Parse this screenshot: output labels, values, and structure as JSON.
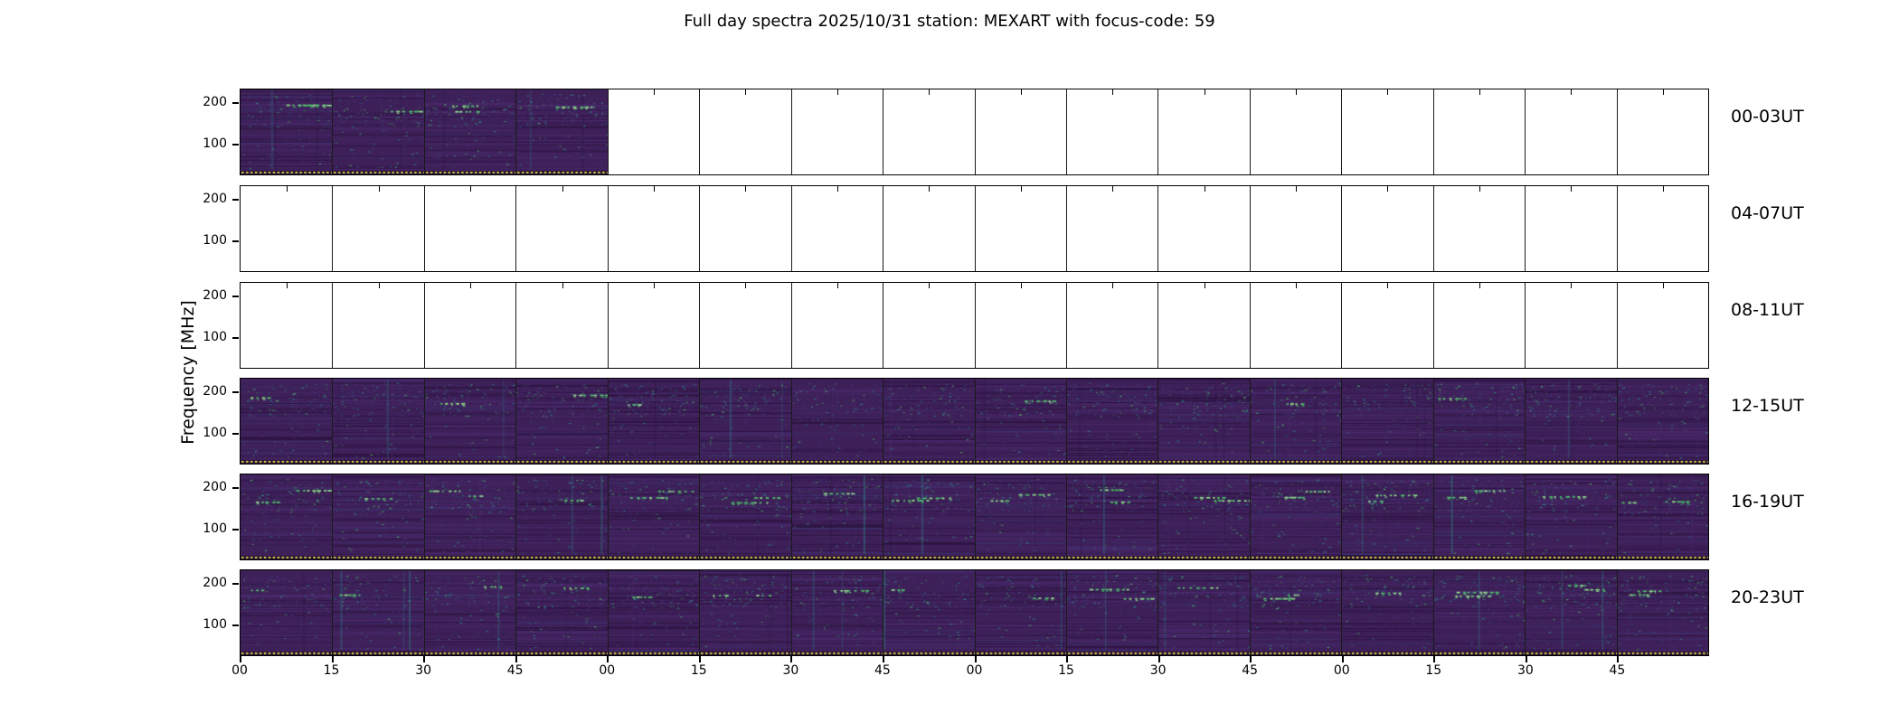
{
  "chart_data": {
    "type": "heatmap",
    "title": "Full day spectra 2025/10/31 station: MEXART with focus-code: 59",
    "date": "2025/10/31",
    "station": "MEXART",
    "focus_code": "59",
    "ylabel": "Frequency [MHz]",
    "y_ticks": [
      200,
      100
    ],
    "y_range_mhz": [
      25,
      235
    ],
    "x_tick_labels_per_hour": [
      "00",
      "15",
      "30",
      "45"
    ],
    "hours_per_row": 4,
    "segments_per_row": 16,
    "segment_minutes": 15,
    "grid": false,
    "legend": "none",
    "rows": [
      {
        "label": "00-03UT",
        "filled_segments": [
          0,
          1,
          2,
          3
        ],
        "activity": "high"
      },
      {
        "label": "04-07UT",
        "filled_segments": [],
        "activity": "none"
      },
      {
        "label": "08-11UT",
        "filled_segments": [],
        "activity": "none"
      },
      {
        "label": "12-15UT",
        "filled_segments": [
          0,
          1,
          2,
          3,
          4,
          5,
          6,
          7,
          8,
          9,
          10,
          11,
          12,
          13,
          14,
          15
        ],
        "activity": "medium"
      },
      {
        "label": "16-19UT",
        "filled_segments": [
          0,
          1,
          2,
          3,
          4,
          5,
          6,
          7,
          8,
          9,
          10,
          11,
          12,
          13,
          14,
          15
        ],
        "activity": "high"
      },
      {
        "label": "20-23UT",
        "filled_segments": [
          0,
          1,
          2,
          3,
          4,
          5,
          6,
          7,
          8,
          9,
          10,
          11,
          12,
          13,
          14,
          15
        ],
        "activity": "high"
      }
    ],
    "colors": {
      "base": "#3d2058",
      "dark_band": "#2b123f",
      "light_band": "#4d2b70",
      "blue_band": "#3b3f7e",
      "speckle_teal": "#2a9d8f",
      "speckle_green": "#4fc46a",
      "speckle_bright": "#8fe08a",
      "bottom_strip": "#220d36",
      "bottom_dots": "#f0e442",
      "empty": "#ffffff",
      "border": "#000000"
    }
  }
}
